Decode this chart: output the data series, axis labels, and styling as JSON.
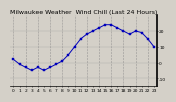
{
  "title": "Milwaukee Weather  Wind Chill (Last 24 Hours)",
  "x_values": [
    0,
    1,
    2,
    3,
    4,
    5,
    6,
    7,
    8,
    9,
    10,
    11,
    12,
    13,
    14,
    15,
    16,
    17,
    18,
    19,
    20,
    21,
    22,
    23
  ],
  "y_values": [
    2,
    -1,
    -3,
    -5,
    -3,
    -5,
    -3,
    -1,
    1,
    5,
    10,
    15,
    18,
    20,
    22,
    24,
    24,
    22,
    20,
    18,
    20,
    19,
    15,
    10
  ],
  "line_color": "#0000bb",
  "marker_color": "#0000bb",
  "bg_color": "#d4d0c8",
  "plot_bg_color": "#d4d0c8",
  "grid_color": "#888888",
  "text_color": "#000000",
  "ylim": [
    -15,
    30
  ],
  "ytick_values": [
    20,
    10,
    0,
    -10
  ],
  "ytick_labels": [
    "20",
    "10",
    "0",
    "-10"
  ],
  "xtick_values": [
    0,
    1,
    2,
    3,
    4,
    5,
    6,
    7,
    8,
    9,
    10,
    11,
    12,
    13,
    14,
    15,
    16,
    17,
    18,
    19,
    20,
    21,
    22,
    23
  ],
  "xtick_labels": [
    "0",
    "1",
    "2",
    "3",
    "4",
    "5",
    "6",
    "7",
    "8",
    "9",
    "10",
    "11",
    "12",
    "13",
    "14",
    "15",
    "16",
    "17",
    "18",
    "19",
    "20",
    "21",
    "22",
    "23"
  ],
  "title_fontsize": 4.5,
  "tick_fontsize": 3.2,
  "linewidth": 0.7,
  "markersize": 1.5
}
